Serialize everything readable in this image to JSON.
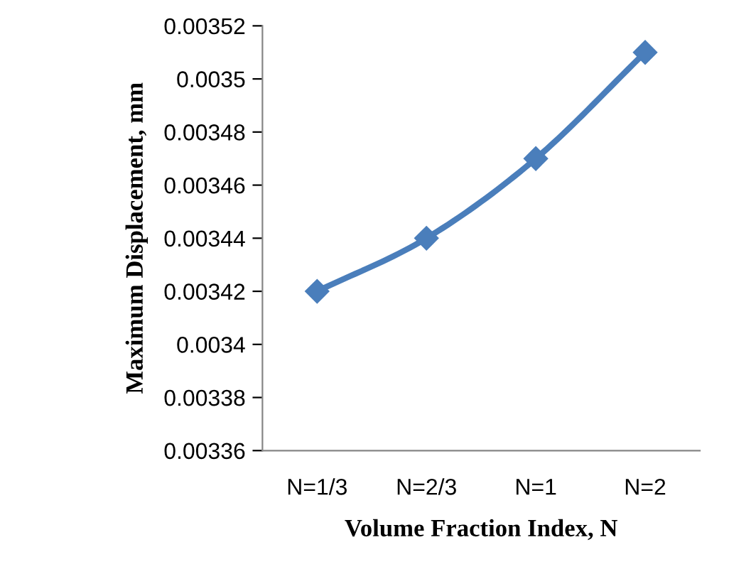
{
  "chart_data": {
    "type": "line",
    "xlabel": "Volume Fraction Index, N",
    "ylabel": "Maximum Displacement, mm",
    "categories": [
      "N=1/3",
      "N=2/3",
      "N=1",
      "N=2"
    ],
    "series": [
      {
        "color": "#4a7ebb",
        "values": [
          0.00342,
          0.00344,
          0.00347,
          0.00351
        ]
      }
    ],
    "ylim": [
      0.00336,
      0.00352
    ],
    "yticks": [
      0.00336,
      0.00338,
      0.0034,
      0.00342,
      0.00344,
      0.00346,
      0.00348,
      0.0035,
      0.00352
    ],
    "grid": false,
    "legend": false,
    "marker": "diamond",
    "line_style": "solid"
  }
}
